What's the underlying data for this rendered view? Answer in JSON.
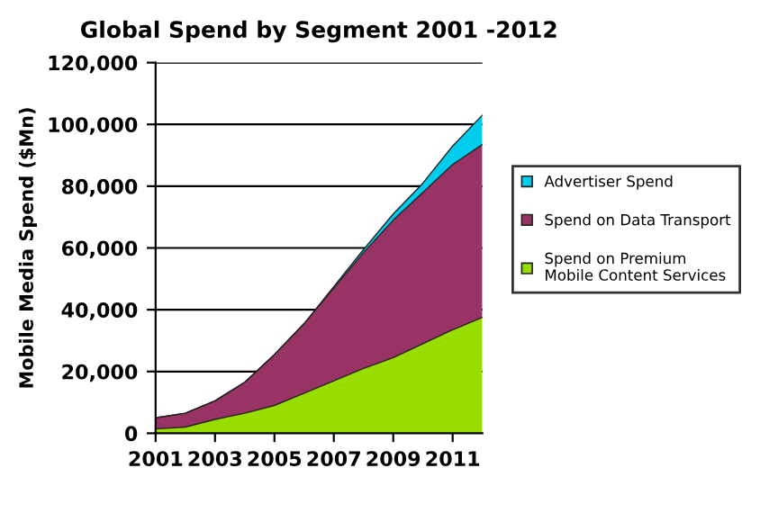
{
  "chart_data": {
    "type": "area",
    "title": "Global Spend by Segment 2001 -2012",
    "ylabel": "Mobile Media Spend ($Mn)",
    "x": [
      2001,
      2002,
      2003,
      2004,
      2005,
      2006,
      2007,
      2008,
      2009,
      2010,
      2011,
      2012
    ],
    "stacked": true,
    "series": [
      {
        "name": "Spend on Premium Mobile Content Services",
        "color": "#99dd00",
        "values": [
          1400,
          2000,
          4500,
          6500,
          9000,
          13000,
          17000,
          21000,
          24500,
          29000,
          33500,
          37500
        ]
      },
      {
        "name": "Spend on Data Transport",
        "color": "#993366",
        "values": [
          3600,
          4500,
          6000,
          10000,
          16500,
          22500,
          30000,
          37500,
          44500,
          49000,
          53500,
          56000
        ]
      },
      {
        "name": "Advertiser Spend",
        "color": "#00ccee",
        "values": [
          0,
          0,
          0,
          0,
          0,
          0,
          500,
          1000,
          2000,
          3000,
          6000,
          9500
        ]
      }
    ],
    "xlim": [
      2001,
      2012
    ],
    "xticks": [
      2001,
      2003,
      2005,
      2007,
      2009,
      2011
    ],
    "ylim": [
      0,
      120000
    ],
    "yticks": [
      {
        "value": 0,
        "label": "0"
      },
      {
        "value": 20000,
        "label": "20,000"
      },
      {
        "value": 40000,
        "label": "40,000"
      },
      {
        "value": 60000,
        "label": "60,000"
      },
      {
        "value": 80000,
        "label": "80,000"
      },
      {
        "value": 100000,
        "label": "100,000"
      },
      {
        "value": 120000,
        "label": "120,000"
      }
    ],
    "grid": "y",
    "legend": "right"
  }
}
